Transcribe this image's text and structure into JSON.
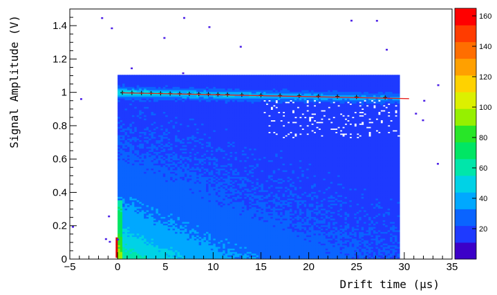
{
  "chart_data": {
    "type": "heatmap",
    "title": "",
    "xlabel": "Drift time (µs)",
    "ylabel": "Signal Amplitude (V)",
    "xlim": [
      -5,
      35
    ],
    "ylim": [
      0,
      1.5
    ],
    "zlim": [
      0,
      165
    ],
    "x_ticks": [
      "−5",
      "0",
      "5",
      "10",
      "15",
      "20",
      "25",
      "30",
      "35"
    ],
    "y_ticks": [
      "0",
      "0.2",
      "0.4",
      "0.6",
      "0.8",
      "1",
      "1.2",
      "1.4"
    ],
    "z_ticks": [
      "20",
      "40",
      "60",
      "80",
      "100",
      "120",
      "140",
      "160"
    ],
    "density_region": {
      "x_range": [
        0,
        29.5
      ],
      "y_range": [
        0,
        1.1
      ]
    },
    "profile_points": {
      "x": [
        0.5,
        1.5,
        2.5,
        3.5,
        4.5,
        5.5,
        6.5,
        7.5,
        8.5,
        9.5,
        10.5,
        11.5,
        13,
        15,
        17,
        19,
        21,
        23,
        25,
        28
      ],
      "y": [
        0.998,
        0.997,
        0.996,
        0.995,
        0.994,
        0.993,
        0.992,
        0.991,
        0.99,
        0.989,
        0.988,
        0.987,
        0.985,
        0.983,
        0.981,
        0.979,
        0.977,
        0.975,
        0.972,
        0.969
      ]
    },
    "fit_line": {
      "x": [
        0.5,
        30.5
      ],
      "y": [
        0.997,
        0.962
      ],
      "color": "#e8201c"
    },
    "grid": false,
    "colors": {
      "background": "#ffffff",
      "palette": [
        "#3c00c8",
        "#1e3aff",
        "#0a64ff",
        "#00a8ff",
        "#00d2e6",
        "#00e6aa",
        "#00e664",
        "#28e628",
        "#96f000",
        "#dcf000",
        "#ffd200",
        "#ffa000",
        "#ff6e00",
        "#ff3c00",
        "#ff0000"
      ]
    }
  }
}
